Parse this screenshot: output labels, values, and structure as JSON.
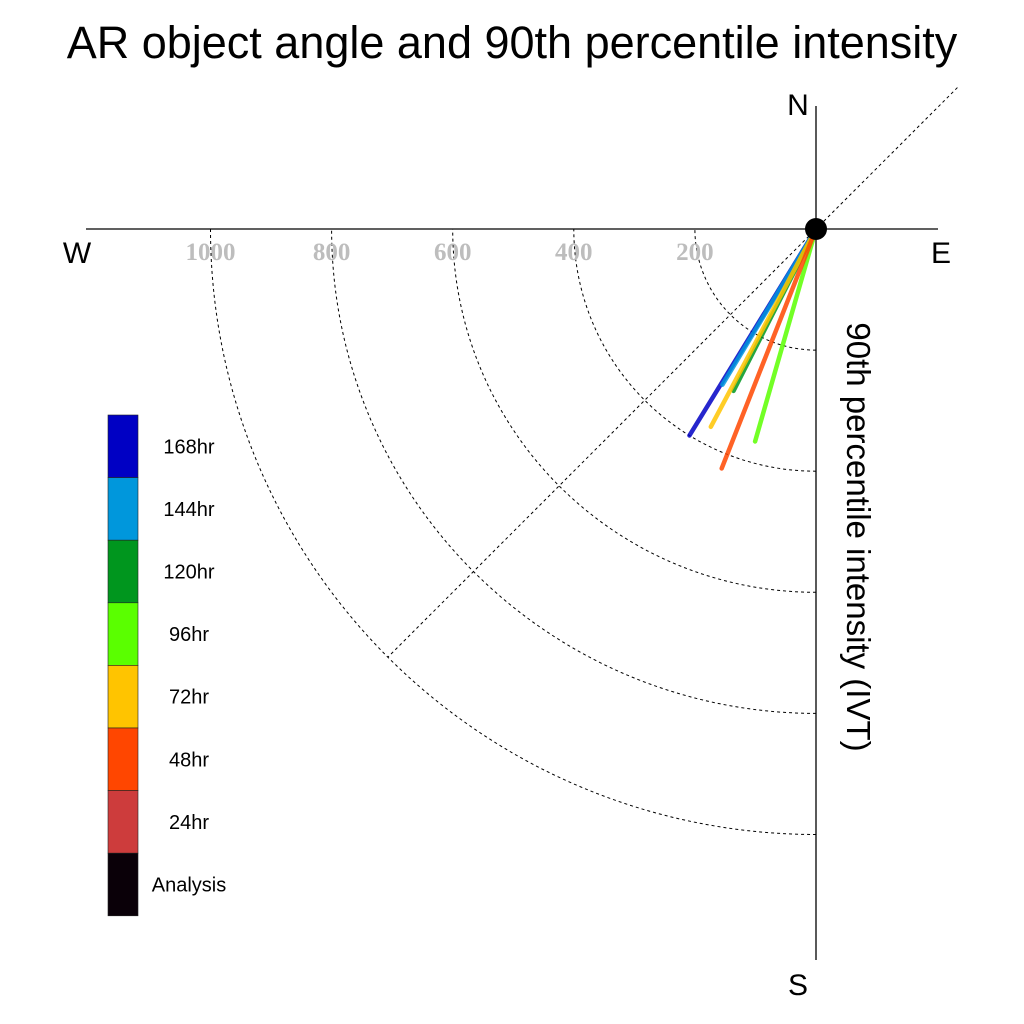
{
  "chart_data": {
    "type": "polar-vector",
    "title": "AR object angle and 90th percentile intensity",
    "ylabel": "90th percentile intensity (IVT)",
    "compass": {
      "n": "N",
      "e": "E",
      "s": "S",
      "w": "W"
    },
    "radial_ticks": [
      "200",
      "400",
      "600",
      "800",
      "1000"
    ],
    "radial_tick_values": [
      200,
      400,
      600,
      800,
      1000
    ],
    "radial_range": [
      0,
      1200
    ],
    "grid": true,
    "legend_placement": "lower-left",
    "series": [
      {
        "name": "168hr",
        "color": "#0000c4",
        "angle_deg": 211.5,
        "intensity": 400
      },
      {
        "name": "144hr",
        "color": "#0097dc",
        "angle_deg": 211.0,
        "intensity": 300
      },
      {
        "name": "120hr",
        "color": "#00961e",
        "angle_deg": 207.0,
        "intensity": 300
      },
      {
        "name": "96hr",
        "color": "#5aff00",
        "angle_deg": 196.0,
        "intensity": 365
      },
      {
        "name": "72hr",
        "color": "#ffc400",
        "angle_deg": 208.0,
        "intensity": 370
      },
      {
        "name": "48hr",
        "color": "#ff4600",
        "angle_deg": 201.5,
        "intensity": 425
      },
      {
        "name": "24hr",
        "color": "#cd3c3c",
        "angle_deg": null,
        "intensity": null
      },
      {
        "name": "Analysis",
        "color": "#0a0008",
        "angle_deg": null,
        "intensity": null
      }
    ]
  }
}
